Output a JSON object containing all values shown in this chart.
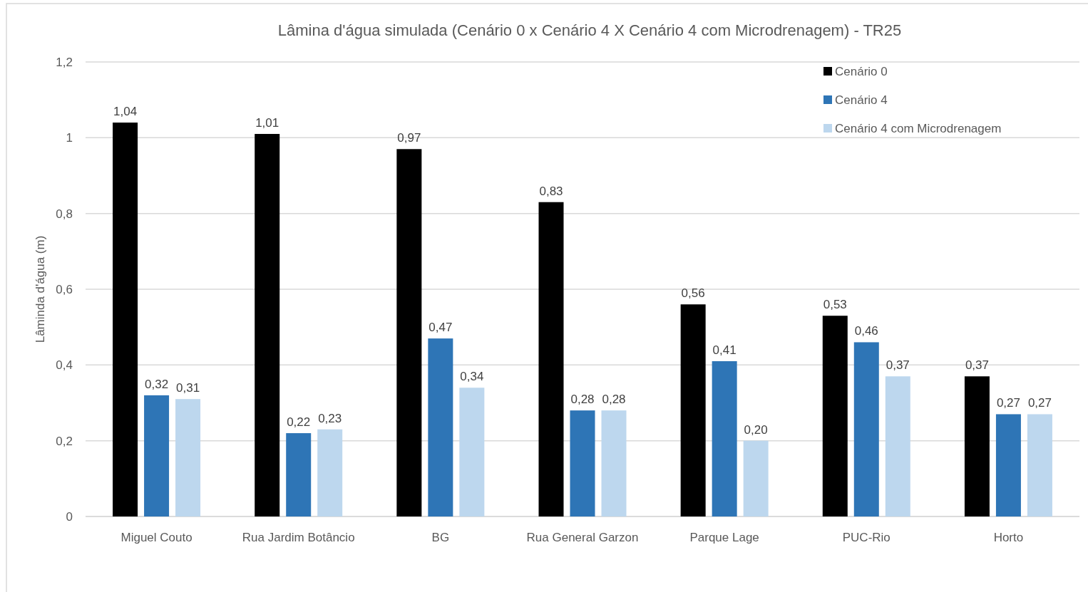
{
  "chart_data": {
    "type": "bar",
    "title": "Lâmina d'água simulada (Cenário 0 x Cenário 4 X Cenário 4 com Microdrenagem) - TR25",
    "ylabel": "Lâminda d'água (m)",
    "categories": [
      "Miguel Couto",
      "Rua Jardim Botâncio",
      "BG",
      "Rua General Garzon",
      "Parque Lage",
      "PUC-Rio",
      "Horto"
    ],
    "series": [
      {
        "name": "Cenário 0",
        "color": "#000000",
        "values": [
          1.04,
          1.01,
          0.97,
          0.83,
          0.56,
          0.53,
          0.37
        ],
        "value_labels": [
          "1,04",
          "1,01",
          "0,97",
          "0,83",
          "0,56",
          "0,53",
          "0,37"
        ]
      },
      {
        "name": "Cenário 4",
        "color": "#2e75b6",
        "values": [
          0.32,
          0.22,
          0.47,
          0.28,
          0.41,
          0.46,
          0.27
        ],
        "value_labels": [
          "0,32",
          "0,22",
          "0,47",
          "0,28",
          "0,41",
          "0,46",
          "0,27"
        ]
      },
      {
        "name": "Cenário 4 com Microdrenagem",
        "color": "#bdd7ee",
        "values": [
          0.31,
          0.23,
          0.34,
          0.28,
          0.2,
          0.37,
          0.27
        ],
        "value_labels": [
          "0,31",
          "0,23",
          "0,34",
          "0,28",
          "0,20",
          "0,37",
          "0,27"
        ]
      }
    ],
    "ylim": [
      0,
      1.2
    ],
    "yticks": [
      0,
      {
        "value": 0.2,
        "label": "0,2"
      },
      {
        "value": 0.4,
        "label": "0,4"
      },
      {
        "value": 0.6,
        "label": "0,6"
      },
      {
        "value": 0.8,
        "label": "0,8"
      },
      1,
      {
        "value": 1.2,
        "label": "1,2"
      }
    ],
    "grid": "y",
    "legend": "top right"
  }
}
